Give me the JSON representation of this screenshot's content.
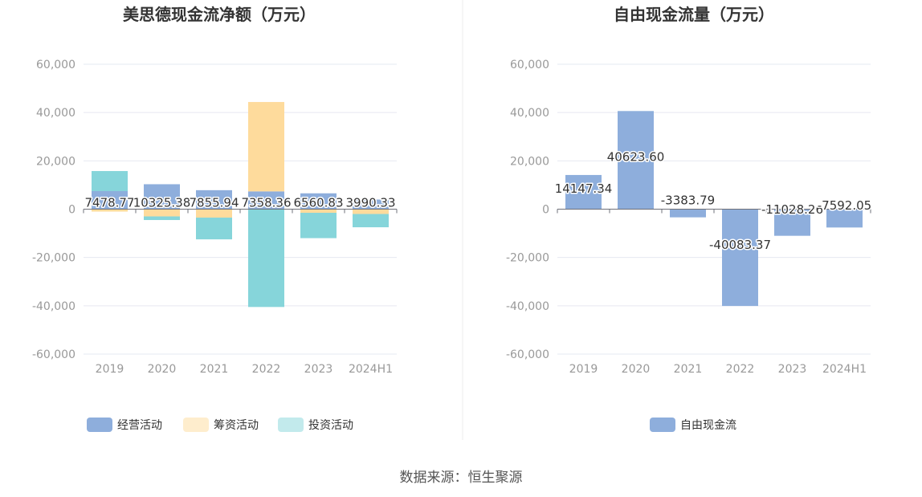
{
  "source_text": "数据来源：恒生聚源",
  "colors": {
    "operating": "#8eaedc",
    "financing": "#fedb9c",
    "investing": "#86d5da",
    "free_cash_flow": "#8eaedc",
    "grid": "#e6e8f0",
    "axis": "#6e7079",
    "divider": "#eeeeee"
  },
  "chart_data": [
    {
      "type": "bar",
      "stacked": true,
      "title": "美思德现金流净额（万元）",
      "categories": [
        "2019",
        "2020",
        "2021",
        "2022",
        "2023",
        "2024H1"
      ],
      "ylim": [
        -60000,
        60000
      ],
      "yticks": [
        "60,000",
        "40,000",
        "20,000",
        "0",
        "-20,000",
        "-40,000",
        "-60,000"
      ],
      "ytick_values": [
        60000,
        40000,
        20000,
        0,
        -20000,
        -40000,
        -60000
      ],
      "grid": true,
      "legend_position": "bottom",
      "series": [
        {
          "name": "经营活动",
          "color_key": "operating",
          "values": [
            7478.77,
            10325.38,
            7855.94,
            7358.36,
            6560.83,
            3990.33
          ],
          "labels": [
            "7478.77",
            "10325.38",
            "7855.94",
            "7358.36",
            "6560.83",
            "3990.33"
          ]
        },
        {
          "name": "筹资活动",
          "color_key": "financing",
          "values": [
            -1000,
            -3000,
            -3500,
            37000,
            -1500,
            -2000
          ]
        },
        {
          "name": "投资活动",
          "color_key": "investing",
          "values": [
            8300,
            -1500,
            -9000,
            -40500,
            -10500,
            -5500
          ]
        }
      ]
    },
    {
      "type": "bar",
      "title": "自由现金流量（万元）",
      "categories": [
        "2019",
        "2020",
        "2021",
        "2022",
        "2023",
        "2024H1"
      ],
      "ylim": [
        -60000,
        60000
      ],
      "yticks": [
        "60,000",
        "40,000",
        "20,000",
        "0",
        "-20,000",
        "-40,000",
        "-60,000"
      ],
      "ytick_values": [
        60000,
        40000,
        20000,
        0,
        -20000,
        -40000,
        -60000
      ],
      "grid": true,
      "legend_position": "bottom",
      "series": [
        {
          "name": "自由现金流",
          "color_key": "free_cash_flow",
          "values": [
            14147.34,
            40623.6,
            -3383.79,
            -40083.37,
            -11028.26,
            -7592.05
          ],
          "labels": [
            "14147.34",
            "40623.60",
            "-3383.79",
            "-40083.37",
            "-11028.26",
            "-7592.05"
          ]
        }
      ]
    }
  ]
}
